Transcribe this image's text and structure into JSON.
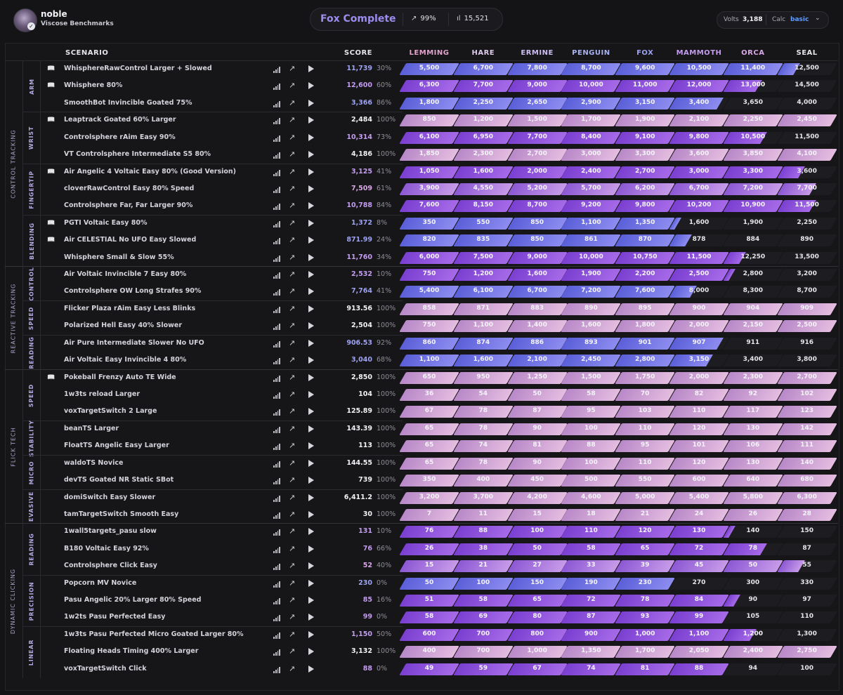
{
  "header": {
    "user_name": "noble",
    "user_subtitle": "Viscose Benchmarks",
    "rank_title": "Fox Complete",
    "stat_percent": "99%",
    "stat_count": "15,521",
    "volts_label": "Volts",
    "volts_value": "3,188",
    "calc_label": "Calc",
    "calc_value": "basic"
  },
  "columns": {
    "scenario": "SCENARIO",
    "score": "SCORE",
    "tiers": [
      {
        "name": "LEMMING",
        "color": "#e2a3cd"
      },
      {
        "name": "HARE",
        "color": "#dccbeb"
      },
      {
        "name": "ERMINE",
        "color": "#cdbcf1"
      },
      {
        "name": "PENGUIN",
        "color": "#a9b3f3"
      },
      {
        "name": "FOX",
        "color": "#9da2f2"
      },
      {
        "name": "MAMMOTH",
        "color": "#c49cf0"
      },
      {
        "name": "ORCA",
        "color": "#d9a8e6"
      },
      {
        "name": "SEAL",
        "color": "#e6e6ea"
      }
    ]
  },
  "categories": [
    {
      "name": "CONTROL TRACKING",
      "subs": [
        {
          "name": "ARM",
          "rows": [
            {
              "name": "WhisphereRawControl Larger + Slowed",
              "score": "11,739",
              "pct": "30%",
              "book": true,
              "tiers": [
                "5,500",
                "6,700",
                "7,800",
                "8,700",
                "9,600",
                "10,500",
                "11,400",
                "12,500"
              ],
              "progress": 7.3,
              "rank": "fox"
            },
            {
              "name": "Whisphere 80%",
              "score": "12,600",
              "pct": "60%",
              "book": true,
              "tiers": [
                "6,300",
                "7,700",
                "9,000",
                "10,000",
                "11,000",
                "12,000",
                "13,000",
                "14,500"
              ],
              "progress": 6.6,
              "rank": "mammoth"
            },
            {
              "name": "SmoothBot Invincible Goated 75%",
              "score": "3,366",
              "pct": "86%",
              "book": false,
              "tiers": [
                "1,800",
                "2,250",
                "2,650",
                "2,900",
                "3,150",
                "3,400",
                "3,650",
                "4,000"
              ],
              "progress": 5.9,
              "rank": "fox"
            }
          ]
        },
        {
          "name": "WRIST",
          "rows": [
            {
              "name": "Leaptrack Goated 60% Larger",
              "score": "2,484",
              "pct": "100%",
              "book": true,
              "tiers": [
                "850",
                "1,200",
                "1,500",
                "1,700",
                "1,900",
                "2,100",
                "2,250",
                "2,450"
              ],
              "progress": 8,
              "rank": "seal"
            },
            {
              "name": "Controlsphere rAim Easy 90%",
              "score": "10,314",
              "pct": "73%",
              "book": false,
              "tiers": [
                "6,100",
                "6,950",
                "7,700",
                "8,400",
                "9,100",
                "9,800",
                "10,500",
                "11,500"
              ],
              "progress": 6.7,
              "rank": "mammoth"
            },
            {
              "name": "VT Controlsphere Intermediate S5 80%",
              "score": "4,186",
              "pct": "100%",
              "book": false,
              "tiers": [
                "1,850",
                "2,300",
                "2,700",
                "3,000",
                "3,300",
                "3,600",
                "3,850",
                "4,100"
              ],
              "progress": 8,
              "rank": "seal"
            }
          ]
        },
        {
          "name": "FINGERTIP",
          "rows": [
            {
              "name": "Air Angelic 4 Voltaic Easy 80% (Good Version)",
              "score": "3,125",
              "pct": "41%",
              "book": true,
              "tiers": [
                "1,050",
                "1,600",
                "2,000",
                "2,400",
                "2,700",
                "3,000",
                "3,300",
                "3,600"
              ],
              "progress": 7.4,
              "rank": "mammoth"
            },
            {
              "name": "cloverRawControl Easy 80% Speed",
              "score": "7,509",
              "pct": "61%",
              "book": false,
              "tiers": [
                "3,900",
                "4,550",
                "5,200",
                "5,700",
                "6,200",
                "6,700",
                "7,200",
                "7,700"
              ],
              "progress": 7.6,
              "rank": "orca"
            },
            {
              "name": "Controlsphere Far, Far Larger 90%",
              "score": "10,788",
              "pct": "84%",
              "book": false,
              "tiers": [
                "7,600",
                "8,150",
                "8,700",
                "9,200",
                "9,800",
                "10,200",
                "10,900",
                "11,500"
              ],
              "progress": 7.6,
              "rank": "mammoth"
            }
          ]
        },
        {
          "name": "BLENDING",
          "rows": [
            {
              "name": "PGTI Voltaic Easy 80%",
              "score": "1,372",
              "pct": "8%",
              "book": true,
              "tiers": [
                "350",
                "550",
                "850",
                "1,100",
                "1,350",
                "1,600",
                "1,900",
                "2,250"
              ],
              "progress": 5.1,
              "rank": "fox"
            },
            {
              "name": "Air CELESTIAL No UFO Easy Slowed",
              "score": "871.99",
              "pct": "24%",
              "book": true,
              "tiers": [
                "820",
                "835",
                "850",
                "861",
                "870",
                "878",
                "884",
                "890"
              ],
              "progress": 5.3,
              "rank": "fox"
            },
            {
              "name": "Whisphere Small & Slow 55%",
              "score": "11,760",
              "pct": "34%",
              "book": false,
              "tiers": [
                "6,000",
                "7,500",
                "9,000",
                "10,000",
                "10,750",
                "11,500",
                "12,250",
                "13,500"
              ],
              "progress": 6.3,
              "rank": "mammoth"
            }
          ]
        }
      ]
    },
    {
      "name": "REACTIVE TRACKING",
      "subs": [
        {
          "name": "CONTROL",
          "rows": [
            {
              "name": "Air Voltaic Invincible 7 Easy 80%",
              "score": "2,532",
              "pct": "10%",
              "book": false,
              "tiers": [
                "750",
                "1,200",
                "1,600",
                "1,900",
                "2,200",
                "2,500",
                "2,800",
                "3,200"
              ],
              "progress": 6.1,
              "rank": "mammoth"
            },
            {
              "name": "Controlsphere OW Long Strafes 90%",
              "score": "7,764",
              "pct": "41%",
              "book": false,
              "tiers": [
                "5,400",
                "6,100",
                "6,700",
                "7,200",
                "7,600",
                "8,000",
                "8,300",
                "8,700"
              ],
              "progress": 5.4,
              "rank": "fox"
            }
          ]
        },
        {
          "name": "SPEED",
          "rows": [
            {
              "name": "Flicker Plaza rAim Easy Less Blinks",
              "score": "913.56",
              "pct": "100%",
              "book": false,
              "tiers": [
                "858",
                "871",
                "883",
                "890",
                "895",
                "900",
                "904",
                "909"
              ],
              "progress": 8,
              "rank": "seal"
            },
            {
              "name": "Polarized Hell Easy 40% Slower",
              "score": "2,504",
              "pct": "100%",
              "book": false,
              "tiers": [
                "750",
                "1,100",
                "1,400",
                "1,600",
                "1,800",
                "2,000",
                "2,150",
                "2,500"
              ],
              "progress": 8,
              "rank": "seal"
            }
          ]
        },
        {
          "name": "READING",
          "rows": [
            {
              "name": "Air Pure Intermediate Slower No UFO",
              "score": "906.53",
              "pct": "92%",
              "book": false,
              "tiers": [
                "860",
                "874",
                "886",
                "893",
                "901",
                "907",
                "911",
                "916"
              ],
              "progress": 5.9,
              "rank": "fox"
            },
            {
              "name": "Air Voltaic Easy Invincible 4 80%",
              "score": "3,040",
              "pct": "68%",
              "book": false,
              "tiers": [
                "1,100",
                "1,600",
                "2,100",
                "2,450",
                "2,800",
                "3,150",
                "3,400",
                "3,800"
              ],
              "progress": 5.7,
              "rank": "fox"
            }
          ]
        }
      ]
    },
    {
      "name": "FLICK TECH",
      "subs": [
        {
          "name": "SPEED",
          "rows": [
            {
              "name": "Pokeball Frenzy Auto TE Wide",
              "score": "2,850",
              "pct": "100%",
              "book": true,
              "tiers": [
                "650",
                "950",
                "1,250",
                "1,500",
                "1,750",
                "2,000",
                "2,300",
                "2,700"
              ],
              "progress": 8,
              "rank": "seal"
            },
            {
              "name": "1w3ts reload Larger",
              "score": "104",
              "pct": "100%",
              "book": false,
              "tiers": [
                "36",
                "54",
                "50",
                "58",
                "70",
                "82",
                "92",
                "102"
              ],
              "progress": 8,
              "rank": "seal"
            },
            {
              "name": "voxTargetSwitch 2 Large",
              "score": "125.89",
              "pct": "100%",
              "book": false,
              "tiers": [
                "67",
                "78",
                "87",
                "95",
                "103",
                "110",
                "117",
                "123"
              ],
              "progress": 8,
              "rank": "seal"
            }
          ]
        },
        {
          "name": "STABILITY",
          "rows": [
            {
              "name": "beanTS Larger",
              "score": "143.39",
              "pct": "100%",
              "book": false,
              "tiers": [
                "65",
                "78",
                "90",
                "100",
                "110",
                "120",
                "130",
                "142"
              ],
              "progress": 8,
              "rank": "seal"
            },
            {
              "name": "FloatTS Angelic Easy Larger",
              "score": "113",
              "pct": "100%",
              "book": false,
              "tiers": [
                "65",
                "74",
                "81",
                "88",
                "95",
                "101",
                "106",
                "111"
              ],
              "progress": 8,
              "rank": "seal"
            }
          ]
        },
        {
          "name": "MICRO",
          "rows": [
            {
              "name": "waldoTS Novice",
              "score": "144.55",
              "pct": "100%",
              "book": false,
              "tiers": [
                "65",
                "78",
                "90",
                "100",
                "110",
                "120",
                "130",
                "140"
              ],
              "progress": 8,
              "rank": "seal"
            },
            {
              "name": "devTS Goated NR Static SBot",
              "score": "739",
              "pct": "100%",
              "book": false,
              "tiers": [
                "350",
                "400",
                "450",
                "500",
                "550",
                "600",
                "640",
                "680"
              ],
              "progress": 8,
              "rank": "seal"
            }
          ]
        },
        {
          "name": "EVASIVE",
          "rows": [
            {
              "name": "domiSwitch Easy Slower",
              "score": "6,411.2",
              "pct": "100%",
              "book": false,
              "tiers": [
                "3,200",
                "3,700",
                "4,200",
                "4,600",
                "5,000",
                "5,400",
                "5,800",
                "6,300"
              ],
              "progress": 8,
              "rank": "seal"
            },
            {
              "name": "tamTargetSwitch Smooth Easy",
              "score": "30",
              "pct": "100%",
              "book": false,
              "tiers": [
                "7",
                "11",
                "15",
                "18",
                "21",
                "24",
                "26",
                "28"
              ],
              "progress": 8,
              "rank": "seal"
            }
          ]
        }
      ]
    },
    {
      "name": "DYNAMIC CLICKING",
      "subs": [
        {
          "name": "READING",
          "rows": [
            {
              "name": "1wall5targets_pasu slow",
              "score": "131",
              "pct": "10%",
              "book": false,
              "tiers": [
                "76",
                "88",
                "100",
                "110",
                "120",
                "130",
                "140",
                "150"
              ],
              "progress": 6.1,
              "rank": "mammoth"
            },
            {
              "name": "B180 Voltaic Easy 92%",
              "score": "76",
              "pct": "66%",
              "book": false,
              "tiers": [
                "26",
                "38",
                "50",
                "58",
                "65",
                "72",
                "78",
                "87"
              ],
              "progress": 6.7,
              "rank": "mammoth"
            },
            {
              "name": "Controlsphere Click Easy",
              "score": "52",
              "pct": "40%",
              "book": false,
              "tiers": [
                "15",
                "21",
                "27",
                "33",
                "39",
                "45",
                "50",
                "55"
              ],
              "progress": 7.4,
              "rank": "orca"
            }
          ]
        },
        {
          "name": "PRECISION",
          "rows": [
            {
              "name": "Popcorn MV Novice",
              "score": "230",
              "pct": "0%",
              "book": false,
              "tiers": [
                "50",
                "100",
                "150",
                "190",
                "230",
                "270",
                "300",
                "330"
              ],
              "progress": 5.0,
              "rank": "fox"
            },
            {
              "name": "Pasu Angelic 20% Larger 80% Speed",
              "score": "85",
              "pct": "16%",
              "book": false,
              "tiers": [
                "51",
                "58",
                "65",
                "72",
                "78",
                "84",
                "90",
                "97"
              ],
              "progress": 6.2,
              "rank": "mammoth"
            },
            {
              "name": "1w2ts Pasu Perfected Easy",
              "score": "99",
              "pct": "0%",
              "book": false,
              "tiers": [
                "58",
                "69",
                "80",
                "87",
                "93",
                "99",
                "105",
                "110"
              ],
              "progress": 6.0,
              "rank": "mammoth"
            }
          ]
        },
        {
          "name": "LINEAR",
          "rows": [
            {
              "name": "1w3ts Pasu Perfected Micro Goated Larger 80%",
              "score": "1,150",
              "pct": "50%",
              "book": false,
              "tiers": [
                "600",
                "700",
                "800",
                "900",
                "1,000",
                "1,100",
                "1,200",
                "1,300"
              ],
              "progress": 6.5,
              "rank": "mammoth"
            },
            {
              "name": "Floating Heads Timing 400% Larger",
              "score": "3,132",
              "pct": "100%",
              "book": false,
              "tiers": [
                "400",
                "700",
                "1,000",
                "1,350",
                "1,700",
                "2,050",
                "2,400",
                "2,750"
              ],
              "progress": 8,
              "rank": "seal"
            },
            {
              "name": "voxTargetSwitch Click",
              "score": "88",
              "pct": "0%",
              "book": false,
              "tiers": [
                "49",
                "59",
                "67",
                "74",
                "81",
                "88",
                "94",
                "100"
              ],
              "progress": 6.0,
              "rank": "mammoth"
            }
          ]
        }
      ]
    }
  ],
  "colors": {
    "seal": [
      "#b888c8",
      "#e4bde0"
    ],
    "orca": [
      "#8c58d4",
      "#c79be8"
    ],
    "mammoth": [
      "#7a3fd0",
      "#a66ae8"
    ],
    "fox": [
      "#5a5fd8",
      "#8d8cf0"
    ],
    "score_seal": "#f2f2f6",
    "score_mammoth": "#c49cf0",
    "score_orca": "#d9a8e6",
    "score_fox": "#9da2f2"
  }
}
